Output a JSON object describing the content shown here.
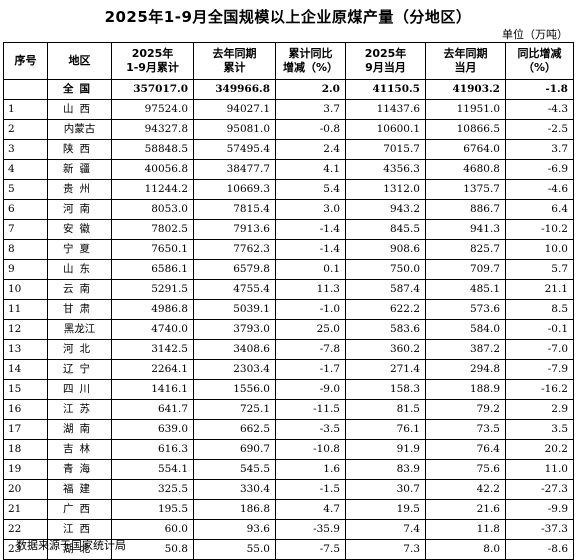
{
  "title": "2025年1-9月全国规模以上企业原煤产量（分地区）",
  "unit": "单位（万吨）",
  "headers": [
    "序号",
    "地区",
    "2025年\n1-9月累计",
    "去年同期\n累计",
    "累计同比\n增减（%）",
    "2025年\n9月当月",
    "去年同期\n当月",
    "同比增减\n（%）"
  ],
  "total": {
    "idx": "",
    "region": "全国",
    "cum2025": "357017.0",
    "cumPrev": "349966.8",
    "cumYoY": "2.0",
    "mon2025": "41150.5",
    "monPrev": "41903.2",
    "monYoY": "-1.8"
  },
  "rows": [
    {
      "idx": "1",
      "region": "山西",
      "cum2025": "97524.0",
      "cumPrev": "94027.1",
      "cumYoY": "3.7",
      "mon2025": "11437.6",
      "monPrev": "11951.0",
      "monYoY": "-4.3"
    },
    {
      "idx": "2",
      "region": "内蒙古",
      "cum2025": "94327.8",
      "cumPrev": "95081.0",
      "cumYoY": "-0.8",
      "mon2025": "10600.1",
      "monPrev": "10866.5",
      "monYoY": "-2.5"
    },
    {
      "idx": "3",
      "region": "陕西",
      "cum2025": "58848.5",
      "cumPrev": "57495.4",
      "cumYoY": "2.4",
      "mon2025": "7015.7",
      "monPrev": "6764.0",
      "monYoY": "3.7"
    },
    {
      "idx": "4",
      "region": "新疆",
      "cum2025": "40056.8",
      "cumPrev": "38477.7",
      "cumYoY": "4.1",
      "mon2025": "4356.3",
      "monPrev": "4680.8",
      "monYoY": "-6.9"
    },
    {
      "idx": "5",
      "region": "贵州",
      "cum2025": "11244.2",
      "cumPrev": "10669.3",
      "cumYoY": "5.4",
      "mon2025": "1312.0",
      "monPrev": "1375.7",
      "monYoY": "-4.6"
    },
    {
      "idx": "6",
      "region": "河南",
      "cum2025": "8053.0",
      "cumPrev": "7815.4",
      "cumYoY": "3.0",
      "mon2025": "943.2",
      "monPrev": "886.7",
      "monYoY": "6.4"
    },
    {
      "idx": "7",
      "region": "安徽",
      "cum2025": "7802.5",
      "cumPrev": "7913.6",
      "cumYoY": "-1.4",
      "mon2025": "845.5",
      "monPrev": "941.3",
      "monYoY": "-10.2"
    },
    {
      "idx": "8",
      "region": "宁夏",
      "cum2025": "7650.1",
      "cumPrev": "7762.3",
      "cumYoY": "-1.4",
      "mon2025": "908.6",
      "monPrev": "825.7",
      "monYoY": "10.0"
    },
    {
      "idx": "9",
      "region": "山东",
      "cum2025": "6586.1",
      "cumPrev": "6579.8",
      "cumYoY": "0.1",
      "mon2025": "750.0",
      "monPrev": "709.7",
      "monYoY": "5.7"
    },
    {
      "idx": "10",
      "region": "云南",
      "cum2025": "5291.5",
      "cumPrev": "4755.4",
      "cumYoY": "11.3",
      "mon2025": "587.4",
      "monPrev": "485.1",
      "monYoY": "21.1"
    },
    {
      "idx": "11",
      "region": "甘肃",
      "cum2025": "4986.8",
      "cumPrev": "5039.1",
      "cumYoY": "-1.0",
      "mon2025": "622.2",
      "monPrev": "573.6",
      "monYoY": "8.5"
    },
    {
      "idx": "12",
      "region": "黑龙江",
      "cum2025": "4740.0",
      "cumPrev": "3793.0",
      "cumYoY": "25.0",
      "mon2025": "583.6",
      "monPrev": "584.0",
      "monYoY": "-0.1"
    },
    {
      "idx": "13",
      "region": "河北",
      "cum2025": "3142.5",
      "cumPrev": "3408.6",
      "cumYoY": "-7.8",
      "mon2025": "360.2",
      "monPrev": "387.2",
      "monYoY": "-7.0"
    },
    {
      "idx": "14",
      "region": "辽宁",
      "cum2025": "2264.1",
      "cumPrev": "2303.4",
      "cumYoY": "-1.7",
      "mon2025": "271.4",
      "monPrev": "294.8",
      "monYoY": "-7.9"
    },
    {
      "idx": "15",
      "region": "四川",
      "cum2025": "1416.1",
      "cumPrev": "1556.0",
      "cumYoY": "-9.0",
      "mon2025": "158.3",
      "monPrev": "188.9",
      "monYoY": "-16.2"
    },
    {
      "idx": "16",
      "region": "江苏",
      "cum2025": "641.7",
      "cumPrev": "725.1",
      "cumYoY": "-11.5",
      "mon2025": "81.5",
      "monPrev": "79.2",
      "monYoY": "2.9"
    },
    {
      "idx": "17",
      "region": "湖南",
      "cum2025": "639.0",
      "cumPrev": "662.5",
      "cumYoY": "-3.5",
      "mon2025": "76.1",
      "monPrev": "73.5",
      "monYoY": "3.5"
    },
    {
      "idx": "18",
      "region": "吉林",
      "cum2025": "616.3",
      "cumPrev": "690.7",
      "cumYoY": "-10.8",
      "mon2025": "91.9",
      "monPrev": "76.4",
      "monYoY": "20.2"
    },
    {
      "idx": "19",
      "region": "青海",
      "cum2025": "554.1",
      "cumPrev": "545.5",
      "cumYoY": "1.6",
      "mon2025": "83.9",
      "monPrev": "75.6",
      "monYoY": "11.0"
    },
    {
      "idx": "20",
      "region": "福建",
      "cum2025": "325.5",
      "cumPrev": "330.4",
      "cumYoY": "-1.5",
      "mon2025": "30.7",
      "monPrev": "42.2",
      "monYoY": "-27.3"
    },
    {
      "idx": "21",
      "region": "广西",
      "cum2025": "195.5",
      "cumPrev": "186.8",
      "cumYoY": "4.7",
      "mon2025": "19.5",
      "monPrev": "21.6",
      "monYoY": "-9.9"
    },
    {
      "idx": "22",
      "region": "江西",
      "cum2025": "60.0",
      "cumPrev": "93.6",
      "cumYoY": "-35.9",
      "mon2025": "7.4",
      "monPrev": "11.8",
      "monYoY": "-37.3"
    },
    {
      "idx": "23",
      "region": "湖北",
      "cum2025": "50.8",
      "cumPrev": "55.0",
      "cumYoY": "-7.5",
      "mon2025": "7.3",
      "monPrev": "8.0",
      "monYoY": "-8.6"
    }
  ],
  "footer": "数据来源于国家统计局"
}
